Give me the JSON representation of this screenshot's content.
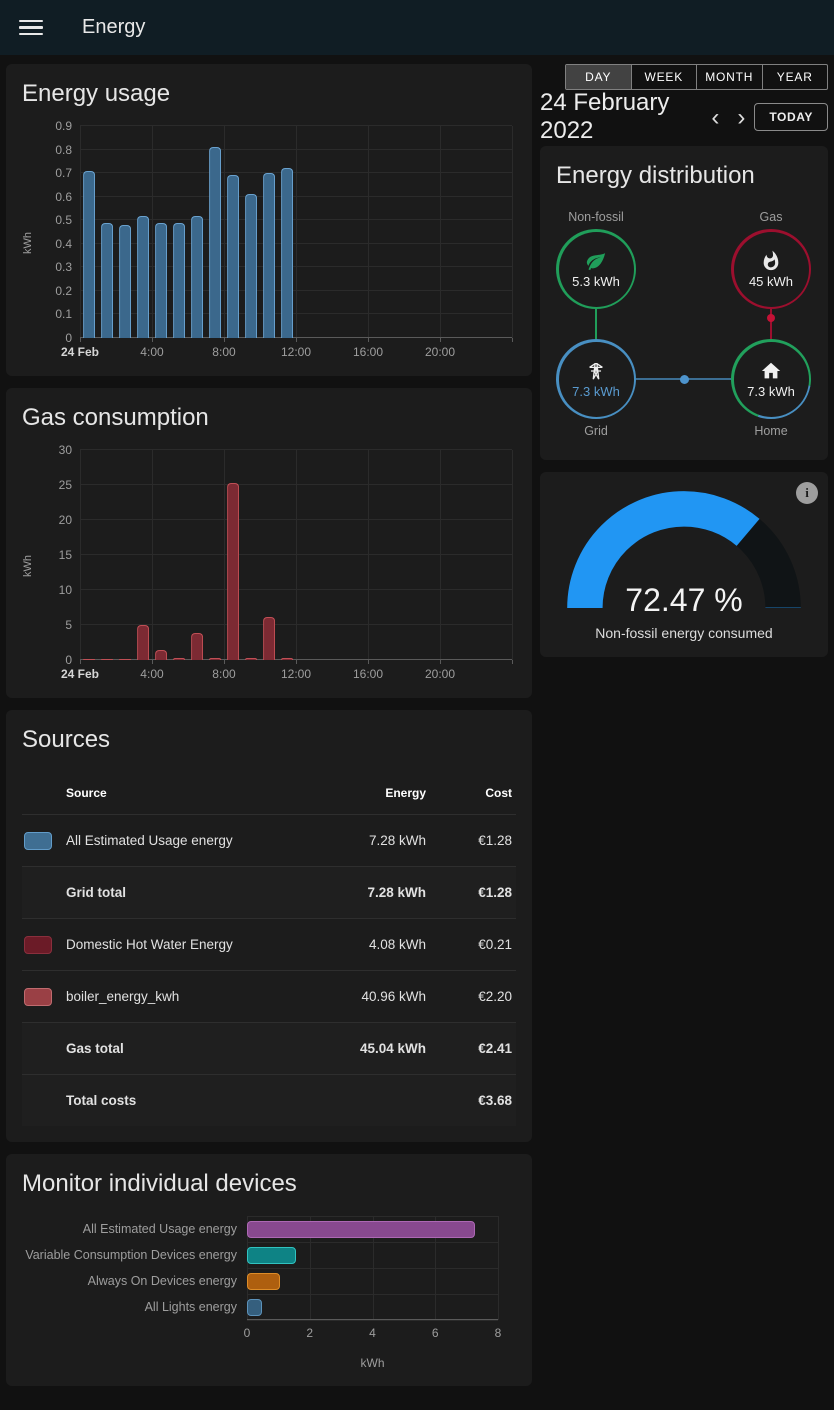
{
  "topbar": {
    "title": "Energy"
  },
  "icons": {
    "prev": "‹",
    "next": "›",
    "info": "i"
  },
  "view_controls": {
    "tabs": [
      {
        "label": "DAY",
        "selected": true
      },
      {
        "label": "WEEK",
        "selected": false
      },
      {
        "label": "MONTH",
        "selected": false
      },
      {
        "label": "YEAR",
        "selected": false
      }
    ],
    "date": "24 February 2022",
    "today_label": "TODAY"
  },
  "distribution_card": {
    "title": "Energy distribution",
    "nodes": {
      "non_fossil": {
        "label": "Non-fossil",
        "value": "5.3 kWh",
        "color": "#209e5a"
      },
      "gas": {
        "label": "Gas",
        "value": "45 kWh",
        "color": "#9c0f2e"
      },
      "grid": {
        "label": "Grid",
        "value": "7.3 kWh",
        "color": "#488fc2"
      },
      "home": {
        "label": "Home",
        "value": "7.3 kWh",
        "color_primary": "#21a05c",
        "color_secondary": "#488fc2",
        "secondary_start_deg": 100,
        "secondary_end_deg": 199
      }
    }
  },
  "gauge_card": {
    "value": "72.47 %",
    "percent": 72.47,
    "label": "Non-fossil energy consumed",
    "color": "#2196f3",
    "track_color": "#101416"
  },
  "sources_card": {
    "title": "Sources",
    "columns": [
      "Source",
      "Energy",
      "Cost"
    ],
    "rows": [
      {
        "swatch": "#3f6e92",
        "swatch_border": "#629cc9",
        "name": "All Estimated Usage energy",
        "energy": "7.28 kWh",
        "cost": "€1.28",
        "bold": false,
        "total": false
      },
      {
        "name": "Grid total",
        "energy": "7.28 kWh",
        "cost": "€1.28",
        "bold": true,
        "total": true
      },
      {
        "swatch": "#6b1b27",
        "swatch_border": "#8a2f3d",
        "name": "Domestic Hot Water Energy",
        "energy": "4.08 kWh",
        "cost": "€0.21",
        "bold": false,
        "total": false
      },
      {
        "swatch": "#9a4045",
        "swatch_border": "#c06b6f",
        "name": "boiler_energy_kwh",
        "energy": "40.96 kWh",
        "cost": "€2.20",
        "bold": false,
        "total": false
      },
      {
        "name": "Gas total",
        "energy": "45.04 kWh",
        "cost": "€2.41",
        "bold": true,
        "total": true
      },
      {
        "name": "Total costs",
        "energy": "",
        "cost": "€3.68",
        "bold": true,
        "total": true
      }
    ]
  },
  "chart_data": [
    {
      "id": "energy-usage",
      "type": "bar",
      "title": "Energy usage",
      "ylabel": "kWh",
      "ylim": [
        0,
        0.9
      ],
      "yticks": [
        {
          "v": 0,
          "label": "0"
        },
        {
          "v": 0.1,
          "label": "0.1"
        },
        {
          "v": 0.2,
          "label": "0.2"
        },
        {
          "v": 0.3,
          "label": "0.3"
        },
        {
          "v": 0.4,
          "label": "0.4"
        },
        {
          "v": 0.5,
          "label": "0.5"
        },
        {
          "v": 0.6,
          "label": "0.6"
        },
        {
          "v": 0.7,
          "label": "0.7"
        },
        {
          "v": 0.8,
          "label": "0.8"
        },
        {
          "v": 0.9,
          "label": "0.9"
        }
      ],
      "x_hours": 24,
      "vgrid_hours": [
        0,
        4,
        8,
        12,
        16,
        20,
        24
      ],
      "xticks": [
        {
          "hour": 0,
          "label": "24 Feb",
          "bold": true
        },
        {
          "hour": 4,
          "label": "4:00"
        },
        {
          "hour": 8,
          "label": "8:00"
        },
        {
          "hour": 12,
          "label": "12:00"
        },
        {
          "hour": 16,
          "label": "16:00"
        },
        {
          "hour": 20,
          "label": "20:00"
        }
      ],
      "bars": [
        {
          "hour": 0,
          "value": 0.71
        },
        {
          "hour": 1,
          "value": 0.49
        },
        {
          "hour": 2,
          "value": 0.48
        },
        {
          "hour": 3,
          "value": 0.52
        },
        {
          "hour": 4,
          "value": 0.49
        },
        {
          "hour": 5,
          "value": 0.49
        },
        {
          "hour": 6,
          "value": 0.52
        },
        {
          "hour": 7,
          "value": 0.81
        },
        {
          "hour": 8,
          "value": 0.69
        },
        {
          "hour": 9,
          "value": 0.61
        },
        {
          "hour": 10,
          "value": 0.7
        },
        {
          "hour": 11,
          "value": 0.72
        }
      ],
      "bar_fill": "#3b688c",
      "bar_border": "#6aa2cf"
    },
    {
      "id": "gas-consumption",
      "type": "bar",
      "title": "Gas consumption",
      "ylabel": "kWh",
      "ylim": [
        0,
        30
      ],
      "yticks": [
        {
          "v": 0,
          "label": "0"
        },
        {
          "v": 5,
          "label": "5"
        },
        {
          "v": 10,
          "label": "10"
        },
        {
          "v": 15,
          "label": "15"
        },
        {
          "v": 20,
          "label": "20"
        },
        {
          "v": 25,
          "label": "25"
        },
        {
          "v": 30,
          "label": "30"
        }
      ],
      "x_hours": 24,
      "vgrid_hours": [
        0,
        4,
        8,
        12,
        16,
        20,
        24
      ],
      "xticks": [
        {
          "hour": 0,
          "label": "24 Feb",
          "bold": true
        },
        {
          "hour": 4,
          "label": "4:00"
        },
        {
          "hour": 8,
          "label": "8:00"
        },
        {
          "hour": 12,
          "label": "12:00"
        },
        {
          "hour": 16,
          "label": "16:00"
        },
        {
          "hour": 20,
          "label": "20:00"
        }
      ],
      "bars": [
        {
          "hour": 0,
          "value": 0.2
        },
        {
          "hour": 1,
          "value": 0.2
        },
        {
          "hour": 2,
          "value": 0.2
        },
        {
          "hour": 3,
          "value": 5.0
        },
        {
          "hour": 4,
          "value": 1.4
        },
        {
          "hour": 5,
          "value": 0.25
        },
        {
          "hour": 6,
          "value": 3.8
        },
        {
          "hour": 7,
          "value": 0.25
        },
        {
          "hour": 8,
          "value": 25.3
        },
        {
          "hour": 9,
          "value": 0.25
        },
        {
          "hour": 10,
          "value": 6.2
        },
        {
          "hour": 11,
          "value": 0.3
        }
      ],
      "bar_fill": "#7c2a33",
      "bar_border": "#c04f55"
    },
    {
      "id": "devices",
      "type": "hbar",
      "title": "Monitor individual devices",
      "xlabel": "kWh",
      "xlim": [
        0,
        8
      ],
      "xticks": [
        {
          "v": 0,
          "label": "0"
        },
        {
          "v": 2,
          "label": "2"
        },
        {
          "v": 4,
          "label": "4"
        },
        {
          "v": 6,
          "label": "6"
        },
        {
          "v": 8,
          "label": "8"
        }
      ],
      "rows": [
        {
          "label": "All Estimated Usage energy",
          "value": 7.28,
          "fill": "#88498f",
          "border": "#ad68b4"
        },
        {
          "label": "Variable Consumption Devices energy",
          "value": 1.55,
          "fill": "#0e8385",
          "border": "#31c3c0"
        },
        {
          "label": "Always On Devices energy",
          "value": 1.05,
          "fill": "#ae5f0f",
          "border": "#dd8c28"
        },
        {
          "label": "All Lights energy",
          "value": 0.48,
          "fill": "#355f7e",
          "border": "#5c92ba"
        }
      ]
    }
  ]
}
